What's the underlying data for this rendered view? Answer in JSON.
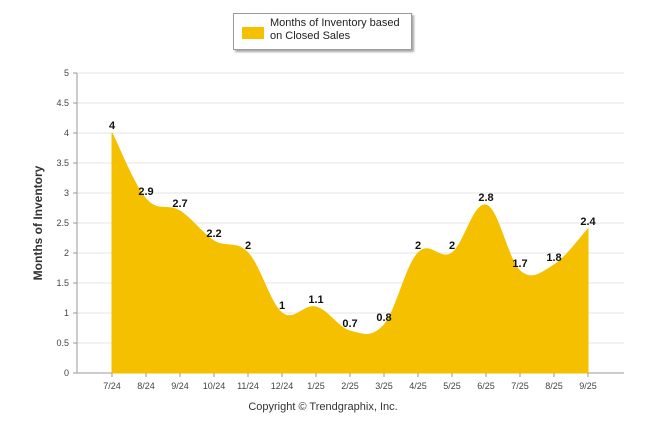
{
  "chart_data": {
    "type": "area",
    "categories": [
      "7/24",
      "8/24",
      "9/24",
      "10/24",
      "11/24",
      "12/24",
      "1/25",
      "2/25",
      "3/25",
      "4/25",
      "5/25",
      "6/25",
      "7/25",
      "8/25",
      "9/25"
    ],
    "series": [
      {
        "name": "Months of Inventory based on Closed Sales",
        "values": [
          4,
          2.9,
          2.7,
          2.2,
          2,
          1,
          1.1,
          0.7,
          0.8,
          2,
          2,
          2.8,
          1.7,
          1.8,
          2.4
        ],
        "color": "#f5c000"
      }
    ],
    "data_labels": [
      "4",
      "2.9",
      "2.7",
      "2.2",
      "2",
      "1",
      "1.1",
      "0.7",
      "0.8",
      "2",
      "2",
      "2.8",
      "1.7",
      "1.8",
      "2.4"
    ],
    "ylabel": "Months of Inventory",
    "xlabel": "",
    "ylim": [
      0,
      5
    ],
    "yticks": [
      "0",
      "0.5",
      "1",
      "1.5",
      "2",
      "2.5",
      "3",
      "3.5",
      "4",
      "4.5",
      "5"
    ],
    "grid": true,
    "legend_position": "top-center"
  },
  "legend": {
    "label": "Months of Inventory based on Closed Sales"
  },
  "footer": {
    "copyright": "Copyright © Trendgraphix, Inc."
  }
}
